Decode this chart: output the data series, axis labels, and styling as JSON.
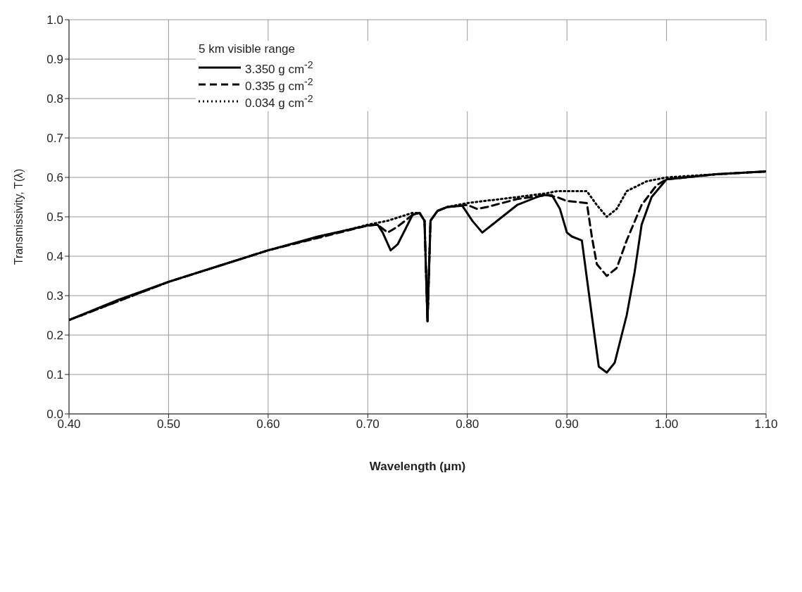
{
  "chart_data": {
    "type": "line",
    "xlabel": "Wavelength (μm)",
    "ylabel": "Transmissivity, T(λ)",
    "legend_title": "5 km visible range",
    "legend": "top left",
    "grid": true,
    "marker": "none",
    "xlim": [
      0.4,
      1.1
    ],
    "xticks": [
      {
        "value": 0.4,
        "label": "0.40"
      },
      {
        "value": 0.5,
        "label": "0.50"
      },
      {
        "value": 0.6,
        "label": "0.60"
      },
      {
        "value": 0.7,
        "label": "0.70"
      },
      {
        "value": 0.8,
        "label": "0.80"
      },
      {
        "value": 0.9,
        "label": "0.90"
      },
      {
        "value": 1.0,
        "label": "1.00"
      },
      {
        "value": 1.1,
        "label": "1.10"
      }
    ],
    "ylim": [
      0,
      1
    ],
    "yticks": [
      {
        "value": 0,
        "label": "0.0"
      },
      0.1,
      0.2,
      0.3,
      0.4,
      0.5,
      0.6,
      0.7,
      0.8,
      0.9,
      {
        "value": 1,
        "label": "1.0"
      }
    ],
    "series": [
      {
        "name": "3.350 g cm$^{-2}$",
        "color": "#000000",
        "line_style": "solid",
        "x": [
          0.4,
          0.45,
          0.5,
          0.55,
          0.6,
          0.65,
          0.7,
          0.71,
          0.715,
          0.723,
          0.73,
          0.745,
          0.752,
          0.757,
          0.76,
          0.763,
          0.77,
          0.78,
          0.795,
          0.805,
          0.815,
          0.825,
          0.85,
          0.875,
          0.885,
          0.893,
          0.9,
          0.905,
          0.915,
          0.925,
          0.932,
          0.94,
          0.948,
          0.96,
          0.968,
          0.975,
          0.985,
          1.0,
          1.05,
          1.1
        ],
        "values": [
          0.238,
          0.29,
          0.335,
          0.375,
          0.415,
          0.45,
          0.478,
          0.48,
          0.46,
          0.415,
          0.43,
          0.505,
          0.51,
          0.49,
          0.235,
          0.49,
          0.515,
          0.525,
          0.528,
          0.49,
          0.46,
          0.48,
          0.53,
          0.555,
          0.555,
          0.52,
          0.46,
          0.45,
          0.44,
          0.25,
          0.12,
          0.105,
          0.13,
          0.25,
          0.36,
          0.48,
          0.55,
          0.595,
          0.608,
          0.615
        ]
      },
      {
        "name": "0.335 g cm$^{-2}$",
        "color": "#000000",
        "line_style": "dashed",
        "x": [
          0.4,
          0.5,
          0.6,
          0.7,
          0.71,
          0.72,
          0.73,
          0.745,
          0.752,
          0.757,
          0.76,
          0.763,
          0.77,
          0.78,
          0.8,
          0.81,
          0.82,
          0.85,
          0.88,
          0.89,
          0.9,
          0.92,
          0.925,
          0.93,
          0.94,
          0.95,
          0.96,
          0.975,
          0.99,
          1.0,
          1.05,
          1.1
        ],
        "values": [
          0.238,
          0.335,
          0.415,
          0.478,
          0.48,
          0.46,
          0.475,
          0.505,
          0.51,
          0.49,
          0.235,
          0.49,
          0.515,
          0.525,
          0.53,
          0.52,
          0.525,
          0.545,
          0.555,
          0.55,
          0.54,
          0.535,
          0.45,
          0.38,
          0.35,
          0.37,
          0.44,
          0.53,
          0.58,
          0.595,
          0.608,
          0.615
        ]
      },
      {
        "name": "0.034 g cm$^{-2}$",
        "color": "#000000",
        "line_style": "dotted",
        "x": [
          0.4,
          0.5,
          0.6,
          0.7,
          0.72,
          0.745,
          0.752,
          0.757,
          0.76,
          0.763,
          0.77,
          0.78,
          0.8,
          0.85,
          0.88,
          0.89,
          0.92,
          0.93,
          0.94,
          0.95,
          0.96,
          0.98,
          1.0,
          1.05,
          1.1
        ],
        "values": [
          0.238,
          0.335,
          0.415,
          0.48,
          0.49,
          0.51,
          0.51,
          0.49,
          0.235,
          0.49,
          0.515,
          0.525,
          0.535,
          0.55,
          0.56,
          0.565,
          0.565,
          0.53,
          0.5,
          0.52,
          0.565,
          0.59,
          0.6,
          0.608,
          0.615
        ]
      }
    ]
  }
}
